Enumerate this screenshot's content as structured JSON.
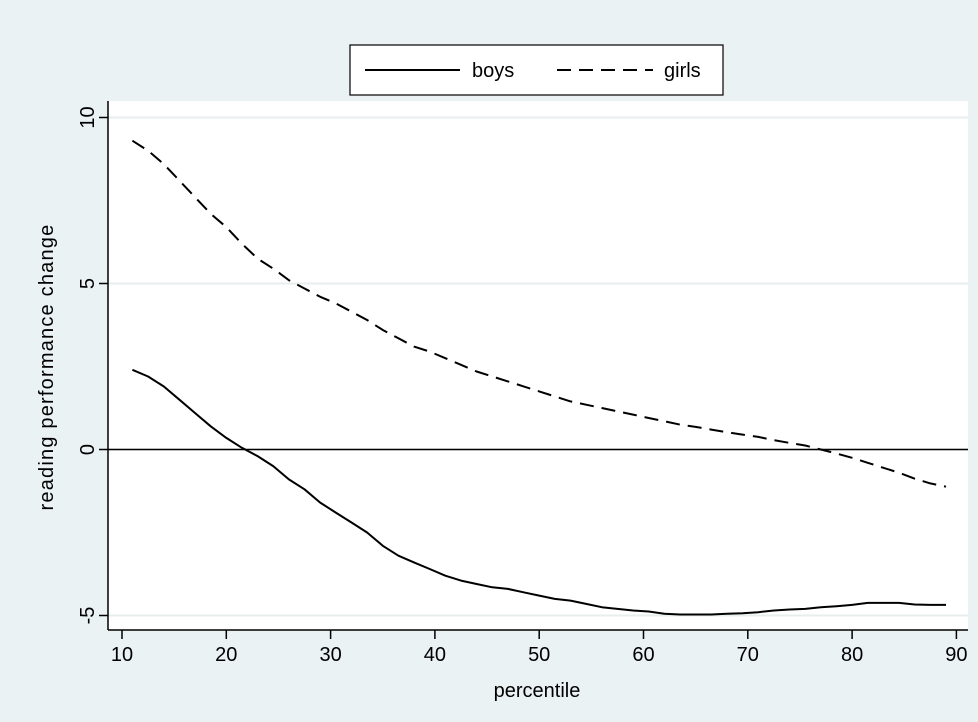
{
  "chart_data": {
    "type": "line",
    "title": "",
    "xlabel": "percentile",
    "ylabel": "reading performance change",
    "xlim": [
      10,
      90
    ],
    "ylim": [
      -5,
      10
    ],
    "x_ticks": [
      10,
      20,
      30,
      40,
      50,
      60,
      70,
      80,
      90
    ],
    "y_ticks": [
      -5,
      0,
      5,
      10
    ],
    "x_tick_labels": [
      "10",
      "20",
      "30",
      "40",
      "50",
      "60",
      "70",
      "80",
      "90"
    ],
    "y_tick_labels": [
      "-5",
      "0",
      "5",
      "10"
    ],
    "grid": "horizontal",
    "reference_line_y": 0,
    "legend": {
      "position": "top-center",
      "entries": [
        "boys",
        "girls"
      ]
    },
    "x": [
      11,
      12.5,
      14,
      15.5,
      17,
      18.5,
      20,
      21.5,
      23,
      24.5,
      26,
      27.5,
      29,
      30.5,
      32,
      33.5,
      35,
      36.5,
      38,
      39.5,
      41,
      42.5,
      44,
      45.5,
      47,
      48.5,
      50,
      51.5,
      53,
      54.5,
      56,
      57.5,
      59,
      60.5,
      62,
      63.5,
      65,
      66.5,
      68,
      69.5,
      71,
      72.5,
      74,
      75.5,
      77,
      78.5,
      80,
      81.5,
      83,
      84.5,
      86,
      87.5,
      89
    ],
    "series": [
      {
        "name": "boys",
        "style": "solid",
        "values": [
          2.4,
          2.2,
          1.9,
          1.5,
          1.1,
          0.7,
          0.35,
          0.05,
          -0.2,
          -0.5,
          -0.9,
          -1.2,
          -1.6,
          -1.9,
          -2.2,
          -2.5,
          -2.9,
          -3.2,
          -3.4,
          -3.6,
          -3.8,
          -3.95,
          -4.05,
          -4.15,
          -4.2,
          -4.3,
          -4.4,
          -4.5,
          -4.55,
          -4.65,
          -4.75,
          -4.8,
          -4.85,
          -4.88,
          -4.95,
          -4.97,
          -4.97,
          -4.97,
          -4.95,
          -4.93,
          -4.9,
          -4.85,
          -4.82,
          -4.8,
          -4.75,
          -4.72,
          -4.68,
          -4.62,
          -4.62,
          -4.62,
          -4.67,
          -4.68,
          -4.68
        ]
      },
      {
        "name": "girls",
        "style": "dashed",
        "values": [
          9.3,
          9.0,
          8.6,
          8.1,
          7.6,
          7.1,
          6.7,
          6.2,
          5.75,
          5.45,
          5.1,
          4.85,
          4.6,
          4.4,
          4.15,
          3.9,
          3.6,
          3.35,
          3.1,
          2.95,
          2.75,
          2.55,
          2.35,
          2.2,
          2.05,
          1.9,
          1.75,
          1.6,
          1.45,
          1.35,
          1.25,
          1.15,
          1.05,
          0.95,
          0.85,
          0.75,
          0.68,
          0.6,
          0.52,
          0.45,
          0.38,
          0.28,
          0.2,
          0.12,
          0.0,
          -0.12,
          -0.25,
          -0.4,
          -0.55,
          -0.7,
          -0.88,
          -1.02,
          -1.12
        ]
      }
    ]
  }
}
